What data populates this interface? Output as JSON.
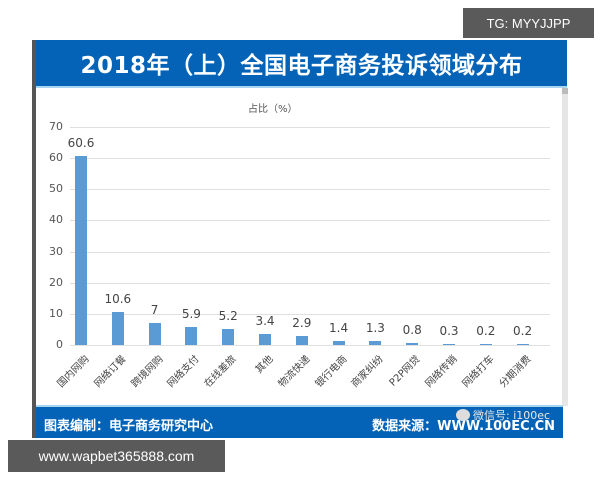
{
  "header": {
    "title": "2018年（上）全国电子商务投诉领域分布"
  },
  "chart_data": {
    "type": "bar",
    "title": "2018年（上）全国电子商务投诉领域分布",
    "ylabel": "占比（%）",
    "xlabel": "",
    "ylim": [
      0,
      70
    ],
    "yticks": [
      0,
      10,
      20,
      30,
      40,
      50,
      60,
      70
    ],
    "grid": true,
    "legend": "none",
    "categories": [
      "国内网购",
      "网络订餐",
      "跨境网购",
      "网络支付",
      "在线差旅",
      "其他",
      "物流快递",
      "银行电商",
      "商家纠纷",
      "P2P网贷",
      "网络传销",
      "网络打车",
      "分期消费"
    ],
    "values": [
      60.6,
      10.6,
      7,
      5.9,
      5.2,
      3.4,
      2.9,
      1.4,
      1.3,
      0.8,
      0.3,
      0.2,
      0.2
    ],
    "value_labels": [
      "60.6",
      "10.6",
      "7",
      "5.9",
      "5.2",
      "3.4",
      "2.9",
      "1.4",
      "1.3",
      "0.8",
      "0.3",
      "0.2",
      "0.2"
    ],
    "bar_color": "#5b9bd5"
  },
  "footer": {
    "left": "图表编制：电子商务研究中心",
    "right": "数据来源：WWW.100EC.CN",
    "wechat": "微信号: i100ec"
  },
  "watermarks": {
    "top": "TG: MYYJJPP",
    "bottom": "www.wapbet365888.com"
  },
  "colors": {
    "header_bg": "#0563b7",
    "bar": "#5b9bd5"
  }
}
